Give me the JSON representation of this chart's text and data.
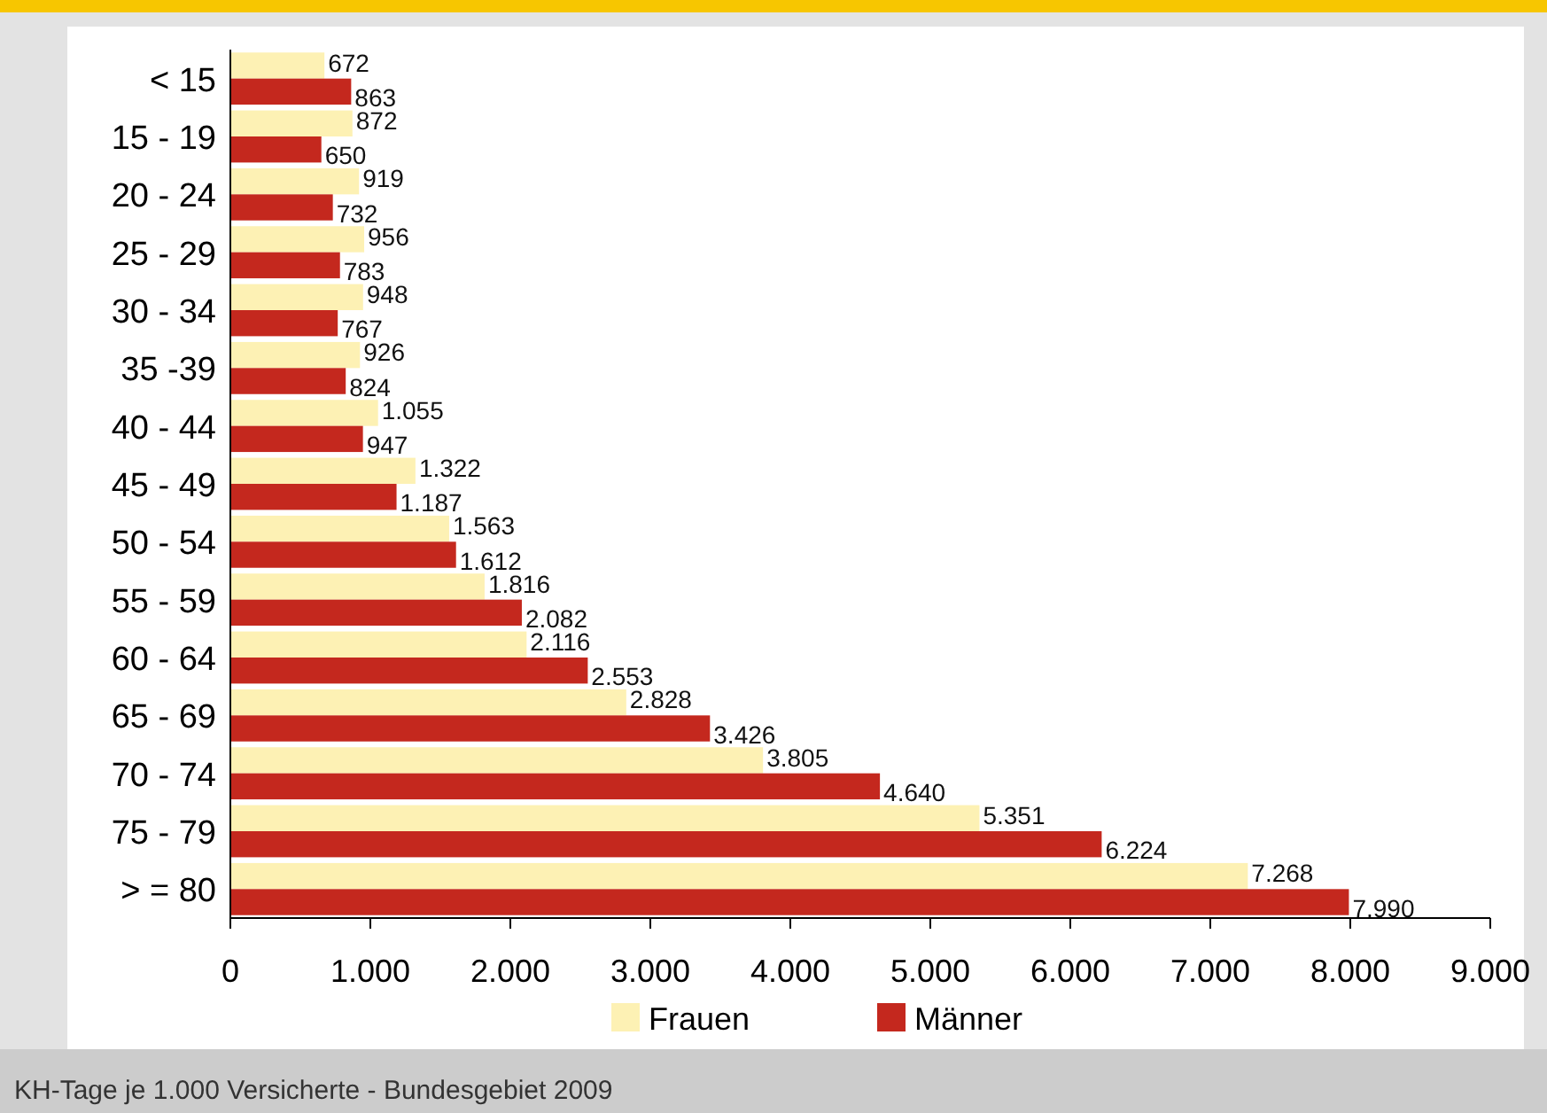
{
  "chart_data": {
    "type": "bar",
    "orientation": "horizontal",
    "categories": [
      "< 15",
      "15 - 19",
      "20 - 24",
      "25 - 29",
      "30 - 34",
      "35 -39",
      "40 - 44",
      "45 - 49",
      "50 - 54",
      "55 - 59",
      "60 - 64",
      "65 - 69",
      "70 - 74",
      "75 - 79",
      "> = 80"
    ],
    "series": [
      {
        "name": "Frauen",
        "color": "#fdf1b4",
        "values": [
          672,
          872,
          919,
          956,
          948,
          926,
          1055,
          1322,
          1563,
          1816,
          2116,
          2828,
          3805,
          5351,
          7268
        ],
        "value_labels": [
          "672",
          "872",
          "919",
          "956",
          "948",
          "926",
          "1.055",
          "1.322",
          "1.563",
          "1.816",
          "2.116",
          "2.828",
          "3.805",
          "5.351",
          "7.268"
        ]
      },
      {
        "name": "Männer",
        "color": "#c4281e",
        "values": [
          863,
          650,
          732,
          783,
          767,
          824,
          947,
          1187,
          1612,
          2082,
          2553,
          3426,
          4640,
          6224,
          7990
        ],
        "value_labels": [
          "863",
          "650",
          "732",
          "783",
          "767",
          "824",
          "947",
          "1.187",
          "1.612",
          "2.082",
          "2.553",
          "3.426",
          "4.640",
          "6.224",
          "7.990"
        ]
      }
    ],
    "xlim": [
      0,
      9000
    ],
    "xticks": [
      {
        "value": 0,
        "label": "0"
      },
      {
        "value": 1000,
        "label": "1.000"
      },
      {
        "value": 2000,
        "label": "2.000"
      },
      {
        "value": 3000,
        "label": "3.000"
      },
      {
        "value": 4000,
        "label": "4.000"
      },
      {
        "value": 5000,
        "label": "5.000"
      },
      {
        "value": 6000,
        "label": "6.000"
      },
      {
        "value": 7000,
        "label": "7.000"
      },
      {
        "value": 8000,
        "label": "8.000"
      },
      {
        "value": 9000,
        "label": "9.000"
      }
    ],
    "grid": false,
    "legend": "bottom",
    "annotations": [
      "KH-Tage je 1.000 Versicherte - Bundesgebiet 2009"
    ]
  }
}
